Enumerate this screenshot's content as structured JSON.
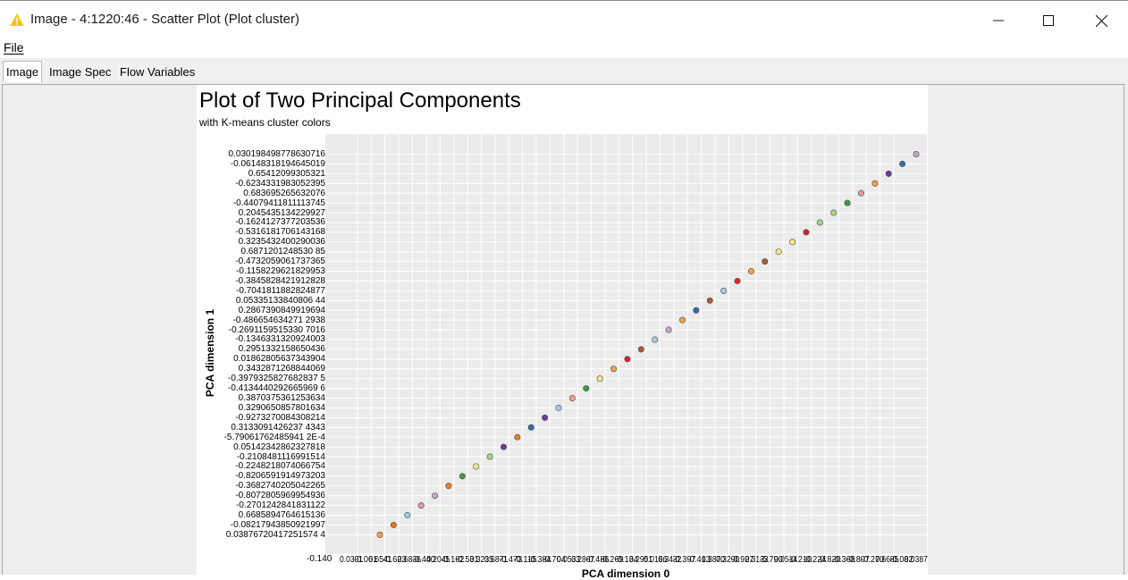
{
  "window": {
    "title": "Image - 4:1220:46 - Scatter Plot (Plot cluster)",
    "icon": "warning-triangle-icon",
    "accent": "#f5c400"
  },
  "menu": {
    "file_label": "File"
  },
  "tabs": [
    {
      "label": "Image",
      "active": true
    },
    {
      "label": "Image Spec",
      "active": false
    },
    {
      "label": "Flow Variables",
      "active": false
    }
  ],
  "chart_data": {
    "type": "scatter",
    "title": "Plot of Two Principal Components",
    "subtitle": "with K-means cluster colors",
    "xlabel": "PCA dimension 0",
    "ylabel": "PCA dimension 1",
    "x_first_tick": "-0.140",
    "x_ticks_overlapping": true,
    "y_ticks": [
      "0.030198498778630716",
      "-0.06148318194645019",
      "0.65412099305321",
      "-0.6234331983052395",
      "0.683695265632076",
      "-0.44079411811113745",
      "0.2045435134229927",
      "-0.1624127377203536",
      "-0.5316181706143168",
      "0.3235432400290036",
      "0.6871201248530 85",
      "-0.4732059061737365",
      "-0.1158229621829953",
      "-0.3845828421912828",
      "-0.7041811882824877",
      "0.05335133840806 44",
      "0.2867390849919694",
      "-0.486654634271 2938",
      "-0.2691159515330 7016",
      "-0.1346331320924003",
      "0.2951332158650436",
      "0.01862805637343904",
      "0.3432871268844069",
      "-0.3979325827682837 5",
      "-0.4134440292665969 6",
      "0.3870375361253634",
      "0.3290650857801634",
      "-0.9273270084308214",
      "0.3133091426237 4343",
      "-5.79061762485941 2E-4",
      "0.05142342862327818",
      "-0.2108481116991514",
      "-0.2248218074066754",
      "-0.8206591914973203",
      "-0.3682740205042265",
      "-0.8072805969954936",
      "-0.2701242841831122",
      "0.6685894764615136",
      "-0.08217943850921997",
      "0.03876720417251574 4"
    ],
    "grid": true,
    "legend": "none",
    "point_colors": [
      "#f4a14a",
      "#e8761e",
      "#9ec8e0",
      "#f0949c",
      "#c9a0d0",
      "#f07f1b",
      "#3f9a44",
      "#f6e68a",
      "#a8d58a",
      "#6a3d9a",
      "#f07f1b",
      "#2a6db4",
      "#6a3d9a",
      "#a6cce3",
      "#f4a0a0",
      "#3f9a44",
      "#f6e68a",
      "#f4a14a",
      "#e01f26",
      "#b15a2a",
      "#a6cce3",
      "#c9a0d0",
      "#f4a14a",
      "#2a6db4",
      "#b15a2a",
      "#a6cce3",
      "#e01f26",
      "#f4a14a",
      "#b15a2a",
      "#f6e68a",
      "#f6e68a",
      "#e01f26",
      "#a8d58a",
      "#a8d58a",
      "#3f9a44",
      "#f0949c",
      "#f4a14a",
      "#6a3d9a",
      "#2a6db4",
      "#c9a0d0"
    ],
    "points_y_index": [
      39,
      38,
      37,
      36,
      35,
      34,
      33,
      32,
      31,
      30,
      29,
      28,
      27,
      26,
      25,
      24,
      23,
      22,
      21,
      20,
      19,
      18,
      17,
      16,
      15,
      14,
      13,
      12,
      11,
      10,
      9,
      8,
      7,
      6,
      5,
      4,
      3,
      2,
      1,
      0
    ]
  }
}
